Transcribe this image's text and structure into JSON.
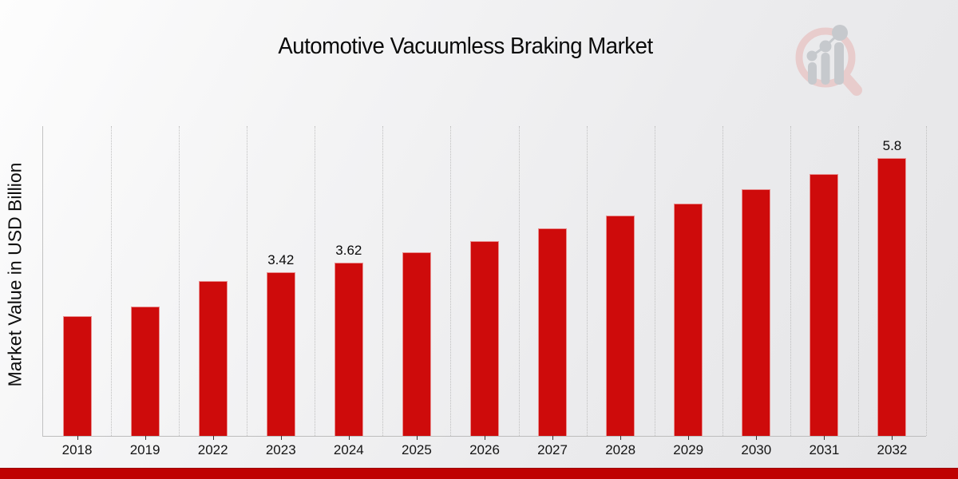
{
  "page": {
    "title": "Automotive Vacuumless Braking Market"
  },
  "logo": {
    "name": "market-research-magnifier-logo",
    "ring_color": "#e8cccc",
    "bars_color": "#c6c9cd"
  },
  "colors": {
    "bar": "#ce0b0b",
    "footer_strip": "#bf0101",
    "gridline": "#bfbfbf",
    "axis_line": "#bdbdbd",
    "text": "#0a0a0a"
  },
  "chart_data": {
    "type": "bar",
    "title": "Automotive Vacuumless Braking Market",
    "xlabel": "",
    "ylabel": "Market Value in USD Billion",
    "categories": [
      "2018",
      "2019",
      "2022",
      "2023",
      "2024",
      "2025",
      "2026",
      "2027",
      "2028",
      "2029",
      "2030",
      "2031",
      "2032"
    ],
    "values": [
      2.5,
      2.7,
      3.23,
      3.42,
      3.62,
      3.83,
      4.07,
      4.33,
      4.6,
      4.86,
      5.16,
      5.47,
      5.8
    ],
    "data_labels": {
      "2023": "3.42",
      "2024": "3.62",
      "2032": "5.8"
    },
    "unit": "USD Billion",
    "ylim": [
      0,
      6.47
    ],
    "grid": "vertical-dotted",
    "legend": "none",
    "bar_color": "#ce0b0b"
  }
}
